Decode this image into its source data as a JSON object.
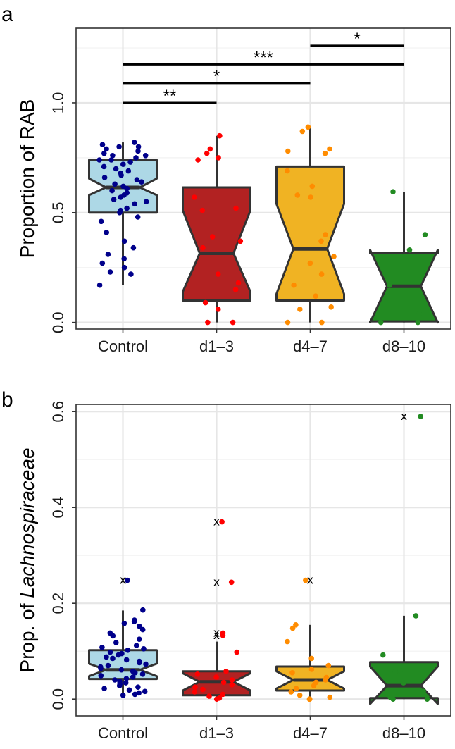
{
  "chart_data": [
    {
      "panel": "a",
      "type": "box",
      "categories": [
        "Control",
        "d1–3",
        "d4–7",
        "d8–10"
      ],
      "ylabel": "Proportion of RAB",
      "yticks": [
        0.0,
        0.5,
        1.0
      ],
      "ytick_labels": [
        "0.0",
        "0.5",
        "1.0"
      ],
      "ylim": [
        -0.03,
        1.34
      ],
      "notched": true,
      "colors": [
        "#add8e6",
        "#b22222",
        "#f0b323",
        "#228b22"
      ],
      "point_colors": [
        "#00008b",
        "#ff0000",
        "#ff8c00",
        "#228b22"
      ],
      "boxes": [
        {
          "category": "Control",
          "q1": 0.5,
          "median": 0.615,
          "q3": 0.74,
          "whisker_low": 0.17,
          "whisker_high": 0.82,
          "notch_low": 0.58,
          "notch_high": 0.655
        },
        {
          "category": "d1–3",
          "q1": 0.1,
          "median": 0.315,
          "q3": 0.615,
          "whisker_low": 0.0,
          "whisker_high": 0.85,
          "notch_low": 0.14,
          "notch_high": 0.51
        },
        {
          "category": "d4–7",
          "q1": 0.1,
          "median": 0.335,
          "q3": 0.71,
          "whisker_low": 0.0,
          "whisker_high": 0.89,
          "notch_low": 0.13,
          "notch_high": 0.54
        },
        {
          "category": "d8–10",
          "q1": 0.005,
          "median": 0.165,
          "q3": 0.315,
          "whisker_low": 0.0,
          "whisker_high": 0.595,
          "notch_low": 0.0,
          "notch_high": 0.33
        }
      ],
      "points": [
        [
          0.82,
          0.81,
          0.8,
          0.8,
          0.79,
          0.78,
          0.77,
          0.76,
          0.76,
          0.75,
          0.74,
          0.74,
          0.73,
          0.72,
          0.71,
          0.7,
          0.69,
          0.68,
          0.67,
          0.66,
          0.65,
          0.64,
          0.63,
          0.62,
          0.61,
          0.6,
          0.59,
          0.58,
          0.57,
          0.56,
          0.55,
          0.54,
          0.52,
          0.51,
          0.5,
          0.48,
          0.46,
          0.41,
          0.37,
          0.34,
          0.31,
          0.29,
          0.27,
          0.25,
          0.23,
          0.22,
          0.17
        ],
        [
          0.85,
          0.79,
          0.77,
          0.75,
          0.74,
          0.57,
          0.52,
          0.51,
          0.39,
          0.37,
          0.34,
          0.22,
          0.18,
          0.15,
          0.09,
          0.06,
          0.0,
          0.0
        ],
        [
          0.89,
          0.87,
          0.79,
          0.78,
          0.77,
          0.69,
          0.62,
          0.58,
          0.57,
          0.4,
          0.37,
          0.3,
          0.27,
          0.22,
          0.17,
          0.12,
          0.07,
          0.06,
          0.0,
          0.0
        ],
        [
          0.595,
          0.4,
          0.33,
          0.3,
          0.17,
          0.04,
          0.0,
          0.0
        ]
      ],
      "significance": [
        {
          "from": "Control",
          "to": "d1–3",
          "label": "**",
          "y": 1.0
        },
        {
          "from": "Control",
          "to": "d4–7",
          "label": "*",
          "y": 1.09
        },
        {
          "from": "Control",
          "to": "d8–10",
          "label": "***",
          "y": 1.175
        },
        {
          "from": "d4–7",
          "to": "d8–10",
          "label": "*",
          "y": 1.26
        }
      ]
    },
    {
      "panel": "b",
      "type": "box",
      "categories": [
        "Control",
        "d1–3",
        "d4–7",
        "d8–10"
      ],
      "ylabel_prefix": "Prop. of ",
      "ylabel_italic": "Lachnospiraceae",
      "yticks": [
        0.0,
        0.2,
        0.4,
        0.6
      ],
      "ytick_labels": [
        "0.0",
        "0.2",
        "0.4",
        "0.6"
      ],
      "ylim": [
        -0.035,
        0.615
      ],
      "notched": true,
      "outlier_marker": "x",
      "colors": [
        "#add8e6",
        "#b22222",
        "#f0b323",
        "#228b22"
      ],
      "point_colors": [
        "#00008b",
        "#ff0000",
        "#ff8c00",
        "#228b22"
      ],
      "boxes": [
        {
          "category": "Control",
          "q1": 0.042,
          "median": 0.061,
          "q3": 0.102,
          "whisker_low": 0.008,
          "whisker_high": 0.185,
          "notch_low": 0.048,
          "notch_high": 0.074
        },
        {
          "category": "d1–3",
          "q1": 0.008,
          "median": 0.036,
          "q3": 0.058,
          "whisker_low": 0.0,
          "whisker_high": 0.12,
          "notch_low": 0.018,
          "notch_high": 0.054
        },
        {
          "category": "d4–7",
          "q1": 0.018,
          "median": 0.04,
          "q3": 0.068,
          "whisker_low": 0.0,
          "whisker_high": 0.155,
          "notch_low": 0.022,
          "notch_high": 0.058
        },
        {
          "category": "d8–10",
          "q1": 0.002,
          "median": 0.028,
          "q3": 0.077,
          "whisker_low": 0.0,
          "whisker_high": 0.174,
          "notch_low": -0.01,
          "notch_high": 0.068
        }
      ],
      "outliers": [
        [
          0.248
        ],
        [
          0.37,
          0.244,
          0.138,
          0.133
        ],
        [
          0.248
        ],
        [
          0.59
        ]
      ],
      "points": [
        [
          0.248,
          0.186,
          0.165,
          0.162,
          0.158,
          0.152,
          0.145,
          0.138,
          0.132,
          0.125,
          0.118,
          0.112,
          0.108,
          0.105,
          0.102,
          0.098,
          0.095,
          0.092,
          0.088,
          0.085,
          0.082,
          0.079,
          0.076,
          0.073,
          0.07,
          0.067,
          0.064,
          0.061,
          0.058,
          0.055,
          0.052,
          0.049,
          0.046,
          0.043,
          0.04,
          0.037,
          0.034,
          0.031,
          0.028,
          0.025,
          0.022,
          0.019,
          0.016,
          0.013,
          0.01,
          0.008
        ],
        [
          0.37,
          0.244,
          0.138,
          0.133,
          0.098,
          0.058,
          0.052,
          0.046,
          0.04,
          0.035,
          0.03,
          0.025,
          0.02,
          0.015,
          0.01,
          0.006,
          0.002,
          0.0
        ],
        [
          0.248,
          0.155,
          0.148,
          0.12,
          0.085,
          0.07,
          0.062,
          0.055,
          0.045,
          0.04,
          0.035,
          0.028,
          0.022,
          0.015,
          0.008,
          0.004,
          0.0,
          0.0
        ],
        [
          0.59,
          0.174,
          0.092,
          0.06,
          0.057,
          0.034,
          0.016,
          0.004,
          0.0,
          0.0
        ]
      ]
    }
  ]
}
